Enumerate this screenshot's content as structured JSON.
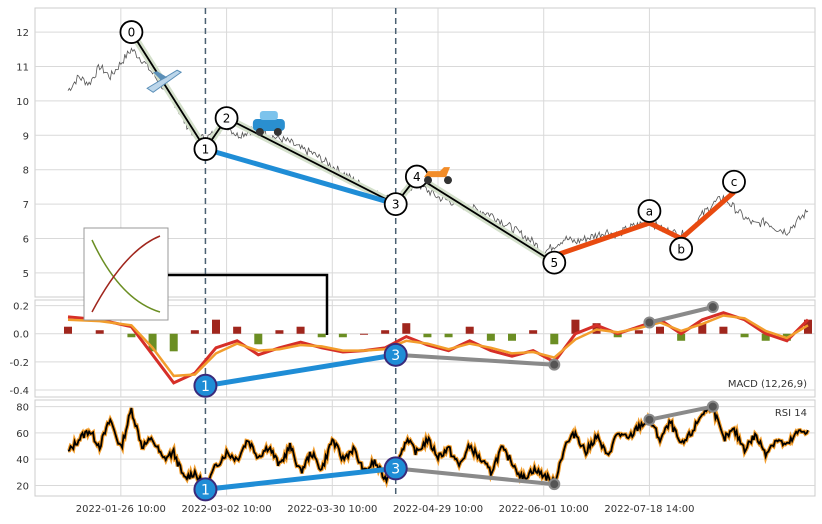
{
  "chart_data": [
    {
      "panel": "price",
      "type": "line",
      "ylim": [
        4.3,
        12.7
      ],
      "yticks": [
        5,
        6,
        7,
        8,
        9,
        10,
        11,
        12
      ],
      "grid": true,
      "series": [
        {
          "kind": "price",
          "points": [
            [
              0,
              10.3
            ],
            [
              1,
              10.7
            ],
            [
              2,
              10.5
            ],
            [
              3,
              11.0
            ],
            [
              4,
              10.7
            ],
            [
              5,
              11.1
            ],
            [
              6,
              11.5
            ],
            [
              7,
              11.2
            ],
            [
              8,
              10.8
            ],
            [
              9,
              10.4
            ],
            [
              10,
              10.0
            ],
            [
              11,
              9.4
            ],
            [
              12,
              9.0
            ],
            [
              13,
              8.9
            ],
            [
              14,
              9.1
            ],
            [
              15,
              9.3
            ],
            [
              16,
              9.0
            ],
            [
              17,
              9.1
            ],
            [
              18,
              9.3
            ],
            [
              19,
              9.0
            ],
            [
              20,
              8.9
            ],
            [
              21,
              8.8
            ],
            [
              22,
              8.6
            ],
            [
              23,
              8.5
            ],
            [
              24,
              8.3
            ],
            [
              25,
              8.1
            ],
            [
              26,
              7.9
            ],
            [
              27,
              7.7
            ],
            [
              28,
              7.5
            ],
            [
              29,
              7.3
            ],
            [
              30,
              7.2
            ],
            [
              31,
              7.1
            ],
            [
              32,
              7.4
            ],
            [
              33,
              7.6
            ],
            [
              34,
              7.4
            ],
            [
              35,
              7.2
            ],
            [
              36,
              7.1
            ],
            [
              37,
              7.0
            ],
            [
              38,
              6.9
            ],
            [
              39,
              6.8
            ],
            [
              40,
              6.7
            ],
            [
              41,
              6.5
            ],
            [
              42,
              6.3
            ],
            [
              43,
              6.1
            ],
            [
              44,
              5.9
            ],
            [
              45,
              5.6
            ],
            [
              46,
              5.8
            ],
            [
              47,
              6.0
            ],
            [
              48,
              5.9
            ],
            [
              49,
              6.0
            ],
            [
              50,
              6.1
            ],
            [
              51,
              6.2
            ],
            [
              52,
              6.1
            ],
            [
              53,
              6.3
            ],
            [
              54,
              6.4
            ],
            [
              55,
              6.5
            ],
            [
              56,
              6.3
            ],
            [
              57,
              6.2
            ],
            [
              58,
              6.1
            ],
            [
              59,
              6.3
            ],
            [
              60,
              6.7
            ],
            [
              61,
              7.0
            ],
            [
              62,
              7.2
            ],
            [
              63,
              6.9
            ],
            [
              64,
              6.6
            ],
            [
              65,
              6.4
            ],
            [
              66,
              6.5
            ],
            [
              67,
              6.3
            ],
            [
              68,
              6.2
            ],
            [
              69,
              6.5
            ],
            [
              70,
              6.8
            ]
          ]
        },
        {
          "kind": "wave-impulse",
          "points": [
            [
              6,
              12.0
            ],
            [
              13,
              8.6
            ],
            [
              15,
              9.5
            ],
            [
              31,
              7.0
            ],
            [
              33,
              7.8
            ],
            [
              46,
              5.3
            ]
          ]
        },
        {
          "kind": "wave-blue",
          "points": [
            [
              13,
              8.6
            ],
            [
              31,
              7.0
            ]
          ]
        },
        {
          "kind": "wave-corrective",
          "points": [
            [
              46,
              5.5
            ],
            [
              55,
              6.45
            ],
            [
              58,
              6.0
            ],
            [
              63,
              7.35
            ]
          ]
        }
      ],
      "wave_labels": [
        {
          "text": "0",
          "x": 6,
          "y": 12.0
        },
        {
          "text": "1",
          "x": 13,
          "y": 8.6
        },
        {
          "text": "2",
          "x": 15,
          "y": 9.5
        },
        {
          "text": "3",
          "x": 31,
          "y": 7.0
        },
        {
          "text": "4",
          "x": 33,
          "y": 7.8
        },
        {
          "text": "5",
          "x": 46,
          "y": 5.3
        },
        {
          "text": "a",
          "x": 55,
          "y": 6.8
        },
        {
          "text": "b",
          "x": 58,
          "y": 5.7
        },
        {
          "text": "c",
          "x": 63,
          "y": 7.65
        }
      ]
    },
    {
      "panel": "macd",
      "type": "line",
      "title": "MACD (12,26,9)",
      "ylim": [
        -0.45,
        0.24
      ],
      "yticks": [
        0.2,
        0.0,
        -0.2,
        -0.4
      ],
      "grid": true,
      "series": [
        {
          "kind": "macd",
          "points": [
            [
              0,
              0.12
            ],
            [
              3,
              0.1
            ],
            [
              6,
              0.05
            ],
            [
              8,
              -0.15
            ],
            [
              10,
              -0.35
            ],
            [
              12,
              -0.28
            ],
            [
              14,
              -0.1
            ],
            [
              16,
              -0.05
            ],
            [
              18,
              -0.15
            ],
            [
              20,
              -0.1
            ],
            [
              22,
              -0.06
            ],
            [
              24,
              -0.1
            ],
            [
              26,
              -0.13
            ],
            [
              28,
              -0.12
            ],
            [
              30,
              -0.1
            ],
            [
              32,
              -0.02
            ],
            [
              34,
              -0.08
            ],
            [
              36,
              -0.12
            ],
            [
              38,
              -0.05
            ],
            [
              40,
              -0.12
            ],
            [
              42,
              -0.16
            ],
            [
              44,
              -0.12
            ],
            [
              46,
              -0.2
            ],
            [
              48,
              0.0
            ],
            [
              50,
              0.06
            ],
            [
              52,
              0.0
            ],
            [
              54,
              0.05
            ],
            [
              56,
              0.1
            ],
            [
              58,
              0.0
            ],
            [
              60,
              0.1
            ],
            [
              62,
              0.15
            ],
            [
              64,
              0.1
            ],
            [
              66,
              0.0
            ],
            [
              68,
              -0.05
            ],
            [
              70,
              0.1
            ]
          ]
        },
        {
          "kind": "signal",
          "points": [
            [
              0,
              0.1
            ],
            [
              3,
              0.09
            ],
            [
              6,
              0.06
            ],
            [
              8,
              -0.1
            ],
            [
              10,
              -0.3
            ],
            [
              12,
              -0.29
            ],
            [
              14,
              -0.14
            ],
            [
              16,
              -0.07
            ],
            [
              18,
              -0.12
            ],
            [
              20,
              -0.11
            ],
            [
              22,
              -0.08
            ],
            [
              24,
              -0.09
            ],
            [
              26,
              -0.12
            ],
            [
              28,
              -0.12
            ],
            [
              30,
              -0.11
            ],
            [
              32,
              -0.05
            ],
            [
              34,
              -0.07
            ],
            [
              36,
              -0.11
            ],
            [
              38,
              -0.07
            ],
            [
              40,
              -0.1
            ],
            [
              42,
              -0.14
            ],
            [
              44,
              -0.13
            ],
            [
              46,
              -0.17
            ],
            [
              48,
              -0.04
            ],
            [
              50,
              0.03
            ],
            [
              52,
              0.01
            ],
            [
              54,
              0.04
            ],
            [
              56,
              0.08
            ],
            [
              58,
              0.02
            ],
            [
              60,
              0.07
            ],
            [
              62,
              0.13
            ],
            [
              64,
              0.11
            ],
            [
              66,
              0.02
            ],
            [
              68,
              -0.03
            ],
            [
              70,
              0.06
            ]
          ]
        },
        {
          "kind": "divergence-blue",
          "points": [
            [
              13,
              -0.37
            ],
            [
              31,
              -0.15
            ]
          ]
        },
        {
          "kind": "divergence-gray",
          "points": [
            [
              31,
              -0.15
            ],
            [
              46,
              -0.22
            ]
          ]
        },
        {
          "kind": "divergence-gray",
          "points": [
            [
              55,
              0.08
            ],
            [
              61,
              0.19
            ]
          ]
        }
      ],
      "labels": [
        {
          "text": "1",
          "x": 13,
          "y": -0.37
        },
        {
          "text": "3",
          "x": 31,
          "y": -0.15
        }
      ]
    },
    {
      "panel": "rsi",
      "type": "line",
      "title": "RSI 14",
      "ylim": [
        12,
        85
      ],
      "yticks": [
        80,
        60,
        40,
        20
      ],
      "grid": true,
      "series": [
        {
          "kind": "rsi",
          "points": [
            [
              0,
              45
            ],
            [
              1,
              55
            ],
            [
              2,
              62
            ],
            [
              3,
              50
            ],
            [
              4,
              70
            ],
            [
              5,
              48
            ],
            [
              6,
              78
            ],
            [
              7,
              50
            ],
            [
              8,
              55
            ],
            [
              9,
              40
            ],
            [
              10,
              45
            ],
            [
              11,
              25
            ],
            [
              12,
              30
            ],
            [
              13,
              18
            ],
            [
              14,
              35
            ],
            [
              15,
              45
            ],
            [
              16,
              40
            ],
            [
              17,
              55
            ],
            [
              18,
              42
            ],
            [
              19,
              50
            ],
            [
              20,
              35
            ],
            [
              21,
              50
            ],
            [
              22,
              30
            ],
            [
              23,
              45
            ],
            [
              24,
              32
            ],
            [
              25,
              55
            ],
            [
              26,
              40
            ],
            [
              27,
              48
            ],
            [
              28,
              30
            ],
            [
              29,
              38
            ],
            [
              30,
              25
            ],
            [
              31,
              34
            ],
            [
              32,
              55
            ],
            [
              33,
              45
            ],
            [
              34,
              55
            ],
            [
              35,
              42
            ],
            [
              36,
              48
            ],
            [
              37,
              35
            ],
            [
              38,
              50
            ],
            [
              39,
              40
            ],
            [
              40,
              30
            ],
            [
              41,
              48
            ],
            [
              42,
              38
            ],
            [
              43,
              25
            ],
            [
              44,
              32
            ],
            [
              45,
              28
            ],
            [
              46,
              22
            ],
            [
              47,
              50
            ],
            [
              48,
              60
            ],
            [
              49,
              45
            ],
            [
              50,
              58
            ],
            [
              51,
              42
            ],
            [
              52,
              60
            ],
            [
              53,
              55
            ],
            [
              54,
              65
            ],
            [
              55,
              70
            ],
            [
              56,
              55
            ],
            [
              57,
              68
            ],
            [
              58,
              50
            ],
            [
              59,
              60
            ],
            [
              60,
              75
            ],
            [
              61,
              80
            ],
            [
              62,
              55
            ],
            [
              63,
              62
            ],
            [
              64,
              48
            ],
            [
              65,
              58
            ],
            [
              66,
              45
            ],
            [
              67,
              55
            ],
            [
              68,
              50
            ],
            [
              69,
              60
            ],
            [
              70,
              62
            ]
          ]
        },
        {
          "kind": "divergence-blue",
          "points": [
            [
              13,
              17
            ],
            [
              31,
              33
            ]
          ]
        },
        {
          "kind": "divergence-gray",
          "points": [
            [
              31,
              33
            ],
            [
              46,
              21
            ]
          ]
        },
        {
          "kind": "divergence-gray",
          "points": [
            [
              55,
              70
            ],
            [
              61,
              80
            ]
          ]
        }
      ],
      "labels": [
        {
          "text": "1",
          "x": 13,
          "y": 17
        },
        {
          "text": "3",
          "x": 31,
          "y": 33
        }
      ]
    }
  ],
  "x_ticks": [
    {
      "x": 5,
      "label": "2022-01-26 10:00"
    },
    {
      "x": 15,
      "label": "2022-03-02 10:00"
    },
    {
      "x": 25,
      "label": "2022-03-30 10:00"
    },
    {
      "x": 35,
      "label": "2022-04-29 10:00"
    },
    {
      "x": 45,
      "label": "2022-06-01 10:00"
    },
    {
      "x": 55,
      "label": "2022-07-18 14:00"
    }
  ],
  "markers": [
    13,
    31
  ],
  "icons": [
    "airplane-icon",
    "car-icon",
    "scooter-icon"
  ],
  "colors": {
    "price": "#555555",
    "wave_fill": "#d4e0cb",
    "wave_line": "#000000",
    "wave_blue": "#1f8dd6",
    "wave_corrective": "#e84a10",
    "macd": "#d62f28",
    "signal": "#f29d2c",
    "histogram_pos": "#a0261d",
    "histogram_neg": "#6b8e23",
    "divergence_gray": "#8a8a8a",
    "rsi_outer": "#f29d2c",
    "rsi_inner": "#000000",
    "grid": "#d9d9d9",
    "marker": "#4a6072"
  }
}
